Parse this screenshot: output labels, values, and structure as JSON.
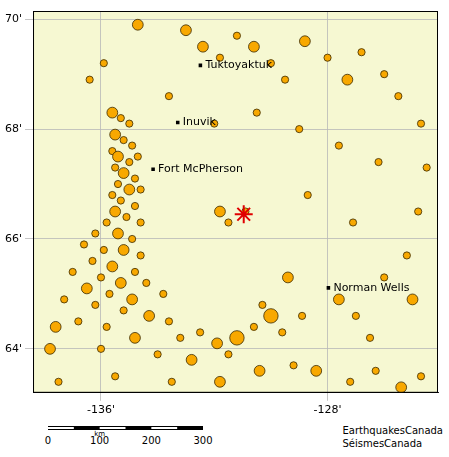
{
  "chart_data": {
    "type": "scatter",
    "color": "#f8a800",
    "xlim": [
      -138.4,
      -124.1
    ],
    "ylim": [
      63.2,
      70.15
    ],
    "xticks": [
      {
        "value": -136,
        "label": "-136'"
      },
      {
        "value": -128,
        "label": "-128'"
      }
    ],
    "yticks": [
      {
        "value": 64,
        "label": "64'"
      },
      {
        "value": 66,
        "label": "66'"
      },
      {
        "value": 68,
        "label": "68'"
      },
      {
        "value": 70,
        "label": "70'"
      }
    ],
    "grid": true,
    "x": [
      -135.6,
      -135.3,
      -135.0,
      -135.5,
      -135.2,
      -134.9,
      -135.6,
      -135.4,
      -135.0,
      -134.7,
      -135.5,
      -135.2,
      -134.8,
      -135.4,
      -135.0,
      -134.6,
      -135.6,
      -135.3,
      -134.8,
      -135.5,
      -135.1,
      -134.6,
      -135.8,
      -136.2,
      -135.4,
      -134.9,
      -136.6,
      -135.9,
      -135.2,
      -134.6,
      -136.3,
      -135.6,
      -134.8,
      -137.0,
      -136.0,
      -135.3,
      -134.4,
      -133.8,
      -136.5,
      -135.7,
      -134.9,
      -137.3,
      -136.2,
      -135.2,
      -134.3,
      -133.6,
      -137.6,
      -136.8,
      -135.8,
      -134.8,
      -133.2,
      -132.5,
      -131.9,
      -131.2,
      -130.6,
      -130.0,
      -129.6,
      -130.3,
      -131.5,
      -132.8,
      -134.0,
      -136.0,
      -137.8,
      -130.4,
      -129.2,
      -128.4,
      -127.2,
      -126.3,
      -125.4,
      -124.7,
      -131.8,
      -133.5,
      -135.5,
      -137.5,
      -127.6,
      -127.0,
      -126.5,
      -126.0,
      -125.2,
      -125.0,
      -124.8,
      -129.4,
      -128.9,
      -131.8,
      -131.5,
      -130.9,
      -133.0,
      -132.4,
      -131.8,
      -131.2,
      -130.6,
      -130.0,
      -129.5,
      -128.8,
      -128.0,
      -127.3,
      -126.8,
      -126.0,
      -125.5,
      -134.7,
      -133.6,
      -132.0,
      -130.5,
      -129.0,
      -127.6,
      -126.2,
      -128.7,
      -127.1,
      -124.7,
      -124.5,
      -136.4,
      -135.9
    ],
    "values": [
      68.3,
      68.2,
      68.1,
      67.9,
      67.8,
      67.7,
      67.6,
      67.5,
      67.4,
      67.5,
      67.3,
      67.2,
      67.1,
      67.0,
      66.9,
      66.9,
      66.8,
      66.7,
      66.6,
      66.5,
      66.4,
      66.3,
      66.3,
      66.1,
      66.1,
      66.0,
      65.9,
      65.8,
      65.8,
      65.7,
      65.6,
      65.5,
      65.4,
      65.4,
      65.3,
      65.2,
      65.2,
      65.0,
      65.1,
      65.0,
      64.9,
      64.9,
      64.8,
      64.7,
      64.6,
      64.5,
      64.4,
      64.5,
      64.4,
      64.2,
      64.2,
      64.3,
      64.1,
      64.2,
      64.4,
      64.6,
      64.3,
      64.8,
      63.9,
      63.8,
      63.9,
      64.0,
      64.0,
      63.6,
      63.7,
      63.6,
      63.4,
      63.6,
      63.3,
      63.5,
      63.4,
      63.4,
      63.5,
      63.4,
      64.9,
      64.6,
      64.2,
      65.3,
      65.7,
      64.9,
      66.5,
      65.3,
      64.6,
      66.5,
      66.3,
      66.5,
      69.8,
      69.5,
      69.3,
      69.7,
      69.5,
      69.2,
      68.9,
      69.6,
      69.3,
      68.9,
      69.4,
      69.0,
      68.6,
      69.9,
      68.6,
      68.1,
      68.3,
      68.0,
      67.7,
      67.4,
      66.8,
      66.3,
      68.1,
      67.3,
      68.9,
      69.2
    ],
    "size": [
      3,
      2,
      2,
      3,
      2,
      2,
      2,
      3,
      2,
      2,
      2,
      3,
      2,
      2,
      3,
      2,
      2,
      2,
      2,
      3,
      2,
      2,
      2,
      2,
      3,
      2,
      2,
      2,
      3,
      2,
      2,
      3,
      2,
      2,
      2,
      3,
      2,
      2,
      3,
      2,
      3,
      2,
      2,
      2,
      3,
      2,
      3,
      2,
      2,
      3,
      2,
      2,
      3,
      4,
      2,
      4,
      2,
      2,
      2,
      3,
      2,
      2,
      3,
      3,
      2,
      3,
      2,
      2,
      3,
      2,
      3,
      2,
      2,
      2,
      3,
      2,
      2,
      2,
      2,
      3,
      2,
      3,
      2,
      3,
      2,
      2,
      3,
      3,
      2,
      2,
      3,
      2,
      2,
      3,
      2,
      3,
      2,
      2,
      2,
      3,
      2,
      2,
      2,
      2,
      2,
      2,
      2,
      2,
      2,
      2,
      2,
      2
    ],
    "places": {
      "marker": "square",
      "color": "#000000",
      "points": [
        {
          "label": "Tuktoyaktuk",
          "x": -132.49,
          "y": 69.16
        },
        {
          "label": "Inuvik",
          "x": -133.29,
          "y": 68.12
        },
        {
          "label": "Fort McPherson",
          "x": -134.16,
          "y": 67.27
        },
        {
          "label": "Norman Wells",
          "x": -127.97,
          "y": 65.11
        }
      ]
    },
    "event": {
      "marker": "star",
      "color": "#e00000",
      "x": -130.96,
      "y": 66.45
    },
    "scale_bar": {
      "ticks": [
        0,
        100,
        200,
        300
      ],
      "unit": "km"
    },
    "credits": [
      "EarthquakesCanada",
      "SéismesCanada"
    ]
  }
}
